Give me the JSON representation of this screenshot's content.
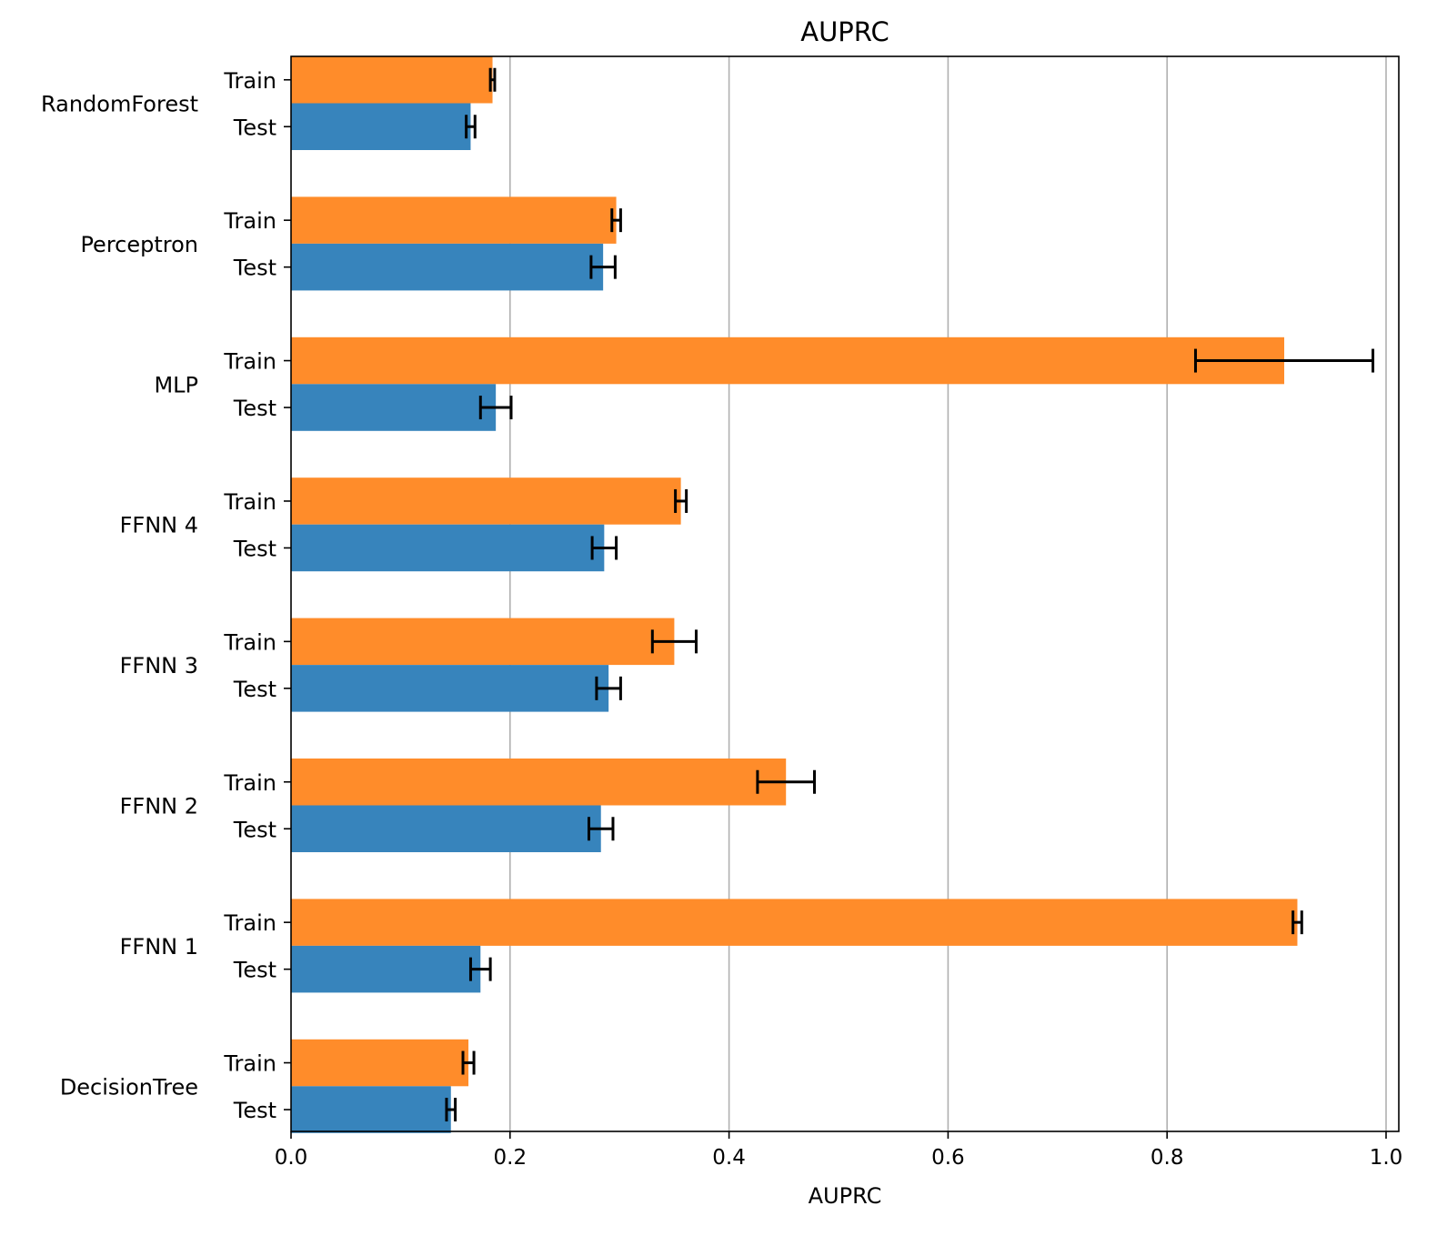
{
  "chart_data": {
    "type": "bar",
    "orientation": "horizontal",
    "title": "AUPRC",
    "xlabel": "AUPRC",
    "ylabel": "",
    "xlim": [
      0.0,
      1.0
    ],
    "xticks": [
      "0.0",
      "0.2",
      "0.4",
      "0.6",
      "0.8",
      "1.0"
    ],
    "grid": "x",
    "legend": "none",
    "categories": [
      "RandomForest",
      "Perceptron",
      "MLP",
      "FFNN 4",
      "FFNN 3",
      "FFNN 2",
      "FFNN 1",
      "DecisionTree"
    ],
    "sub_labels": [
      "Train",
      "Test"
    ],
    "series": [
      {
        "name": "Train",
        "color": "#ff8c2a",
        "values": [
          0.184,
          0.297,
          0.907,
          0.356,
          0.35,
          0.452,
          0.919,
          0.162
        ],
        "errors": [
          0.002,
          0.004,
          0.081,
          0.005,
          0.02,
          0.026,
          0.004,
          0.005
        ]
      },
      {
        "name": "Test",
        "color": "#3784bc",
        "values": [
          0.164,
          0.285,
          0.187,
          0.286,
          0.29,
          0.283,
          0.173,
          0.146
        ],
        "errors": [
          0.004,
          0.011,
          0.014,
          0.011,
          0.011,
          0.011,
          0.009,
          0.004
        ]
      }
    ]
  }
}
